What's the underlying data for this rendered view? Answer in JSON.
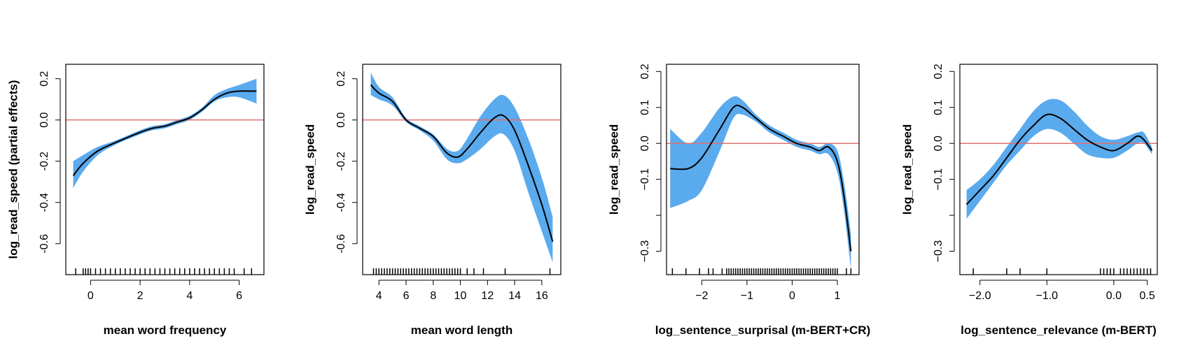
{
  "chart_data": [
    {
      "type": "line",
      "xlabel": "mean word frequency",
      "ylabel": "log_read_speed (partial effects)",
      "xlim": [
        -1.0,
        7.0
      ],
      "ylim": [
        -0.75,
        0.27
      ],
      "xticks": [
        0,
        2,
        4,
        6
      ],
      "xtick_labels": [
        "0",
        "2",
        "4",
        "6"
      ],
      "yticks": [
        -0.6,
        -0.4,
        -0.2,
        0.0,
        0.2
      ],
      "ytick_labels": [
        "-0.6",
        "-0.4",
        "-0.2",
        "0.0",
        "0.2"
      ],
      "reference_line": 0,
      "fit": {
        "x": [
          -0.7,
          -0.3,
          0.3,
          1.0,
          2.0,
          2.5,
          3.0,
          3.5,
          4.0,
          4.5,
          5.0,
          5.5,
          6.0,
          6.7
        ],
        "y": [
          -0.27,
          -0.21,
          -0.15,
          -0.11,
          -0.06,
          -0.04,
          -0.03,
          -0.01,
          0.01,
          0.05,
          0.1,
          0.13,
          0.14,
          0.14
        ],
        "lower": [
          -0.33,
          -0.25,
          -0.17,
          -0.12,
          -0.07,
          -0.05,
          -0.04,
          -0.02,
          0.0,
          0.04,
          0.09,
          0.11,
          0.11,
          0.08
        ],
        "upper": [
          -0.2,
          -0.17,
          -0.13,
          -0.1,
          -0.05,
          -0.03,
          -0.02,
          0.0,
          0.02,
          0.06,
          0.12,
          0.15,
          0.17,
          0.2
        ]
      },
      "rug": [
        -0.6,
        -0.3,
        -0.2,
        -0.1,
        0.0,
        0.2,
        0.4,
        0.6,
        0.8,
        1.0,
        1.2,
        1.4,
        1.6,
        1.8,
        2.0,
        2.2,
        2.4,
        2.6,
        2.8,
        3.0,
        3.2,
        3.4,
        3.6,
        3.8,
        4.0,
        4.2,
        4.4,
        4.6,
        4.8,
        5.0,
        5.2,
        5.4,
        5.6,
        5.8,
        6.2,
        6.5
      ]
    },
    {
      "type": "line",
      "xlabel": "mean word length",
      "ylabel": "log_read_speed",
      "xlim": [
        2.8,
        17.4
      ],
      "ylim": [
        -0.75,
        0.27
      ],
      "xticks": [
        4,
        6,
        8,
        10,
        12,
        14,
        16
      ],
      "xtick_labels": [
        "4",
        "6",
        "8",
        "10",
        "12",
        "14",
        "16"
      ],
      "yticks": [
        -0.6,
        -0.4,
        -0.2,
        0.0,
        0.2
      ],
      "ytick_labels": [
        "-0.6",
        "-0.4",
        "-0.2",
        "0.0",
        "0.2"
      ],
      "reference_line": 0,
      "fit": {
        "x": [
          3.4,
          4.0,
          5.0,
          6.0,
          7.0,
          8.0,
          9.0,
          9.8,
          10.5,
          11.5,
          12.5,
          13.2,
          14.0,
          15.0,
          16.0,
          16.8
        ],
        "y": [
          0.17,
          0.13,
          0.09,
          0.0,
          -0.04,
          -0.08,
          -0.16,
          -0.18,
          -0.14,
          -0.06,
          0.01,
          0.02,
          -0.05,
          -0.22,
          -0.41,
          -0.59
        ],
        "lower": [
          0.12,
          0.1,
          0.07,
          -0.01,
          -0.05,
          -0.1,
          -0.19,
          -0.21,
          -0.19,
          -0.14,
          -0.08,
          -0.07,
          -0.15,
          -0.35,
          -0.54,
          -0.69
        ],
        "upper": [
          0.23,
          0.16,
          0.11,
          0.01,
          -0.03,
          -0.07,
          -0.14,
          -0.15,
          -0.09,
          0.02,
          0.1,
          0.12,
          0.06,
          -0.09,
          -0.28,
          -0.47
        ]
      },
      "rug": [
        3.6,
        3.8,
        4.0,
        4.2,
        4.4,
        4.6,
        4.8,
        5.0,
        5.2,
        5.4,
        5.6,
        5.8,
        6.0,
        6.2,
        6.4,
        6.6,
        6.8,
        7.0,
        7.2,
        7.4,
        7.6,
        7.8,
        8.0,
        8.2,
        8.4,
        8.6,
        8.8,
        9.0,
        9.2,
        9.4,
        9.6,
        9.8,
        10.0,
        10.5,
        11.0,
        11.7,
        13.3,
        16.6
      ]
    },
    {
      "type": "line",
      "xlabel": "log_sentence_surprisal (m-BERT+CR)",
      "ylabel": "log_read_speed",
      "xlim": [
        -2.78,
        1.48
      ],
      "ylim": [
        -0.365,
        0.22
      ],
      "xticks": [
        -2,
        -1,
        0,
        1
      ],
      "xtick_labels": [
        "−2",
        "−1",
        "0",
        "1"
      ],
      "yticks": [
        -0.3,
        -0.2,
        -0.1,
        0.0,
        0.1,
        0.2
      ],
      "ytick_labels": [
        "−0.3",
        "",
        "−0.1",
        "0.0",
        "0.1",
        "0.2"
      ],
      "reference_line": 0,
      "fit": {
        "x": [
          -2.7,
          -2.3,
          -2.0,
          -1.6,
          -1.3,
          -1.1,
          -0.8,
          -0.5,
          -0.2,
          0.1,
          0.4,
          0.6,
          0.8,
          1.0,
          1.15,
          1.3
        ],
        "y": [
          -0.07,
          -0.07,
          -0.04,
          0.04,
          0.1,
          0.1,
          0.07,
          0.04,
          0.02,
          0.0,
          -0.01,
          -0.02,
          -0.01,
          -0.05,
          -0.15,
          -0.3
        ],
        "lower": [
          -0.18,
          -0.16,
          -0.13,
          -0.02,
          0.07,
          0.08,
          0.06,
          0.03,
          0.01,
          -0.01,
          -0.02,
          -0.03,
          -0.03,
          -0.08,
          -0.19,
          -0.35
        ],
        "upper": [
          0.04,
          0.0,
          0.03,
          0.1,
          0.13,
          0.12,
          0.08,
          0.05,
          0.03,
          0.01,
          0.0,
          -0.01,
          0.0,
          -0.02,
          -0.11,
          -0.25
        ]
      },
      "rug": [
        -2.65,
        -2.35,
        -2.05,
        -1.85,
        -1.75,
        -1.55,
        -1.45,
        -1.4,
        -1.35,
        -1.3,
        -1.25,
        -1.2,
        -1.15,
        -1.1,
        -1.05,
        -1.0,
        -0.95,
        -0.9,
        -0.85,
        -0.8,
        -0.75,
        -0.7,
        -0.65,
        -0.6,
        -0.55,
        -0.5,
        -0.45,
        -0.4,
        -0.35,
        -0.3,
        -0.25,
        -0.2,
        -0.15,
        -0.1,
        -0.05,
        0.0,
        0.05,
        0.1,
        0.15,
        0.2,
        0.25,
        0.3,
        0.35,
        0.4,
        0.45,
        0.5,
        0.55,
        0.6,
        0.65,
        0.7,
        0.75,
        0.8,
        0.85,
        0.9,
        0.95,
        1.0,
        1.2,
        1.3
      ]
    },
    {
      "type": "line",
      "xlabel": "log_sentence_relevance (m-BERT)",
      "ylabel": "log_read_speed",
      "xlim": [
        -2.3,
        0.65
      ],
      "ylim": [
        -0.365,
        0.22
      ],
      "xticks": [
        -2.0,
        -1.0,
        0.0,
        0.5
      ],
      "xtick_labels": [
        "−2.0",
        "−1.0",
        "0.0",
        "0.5"
      ],
      "yticks": [
        -0.3,
        -0.2,
        -0.1,
        0.0,
        0.1,
        0.2
      ],
      "ytick_labels": [
        "−0.3",
        "",
        "−0.1",
        "0.0",
        "0.1",
        "0.2"
      ],
      "reference_line": 0,
      "fit": {
        "x": [
          -2.2,
          -2.0,
          -1.8,
          -1.6,
          -1.4,
          -1.2,
          -1.0,
          -0.8,
          -0.6,
          -0.4,
          -0.2,
          0.0,
          0.2,
          0.35,
          0.45,
          0.57
        ],
        "y": [
          -0.17,
          -0.13,
          -0.09,
          -0.04,
          0.01,
          0.05,
          0.08,
          0.07,
          0.04,
          0.01,
          -0.01,
          -0.02,
          0.0,
          0.02,
          0.01,
          -0.02
        ],
        "lower": [
          -0.21,
          -0.16,
          -0.11,
          -0.06,
          -0.02,
          0.02,
          0.04,
          0.03,
          0.0,
          -0.03,
          -0.04,
          -0.04,
          -0.02,
          0.0,
          0.0,
          -0.03
        ],
        "upper": [
          -0.13,
          -0.1,
          -0.06,
          -0.01,
          0.04,
          0.09,
          0.12,
          0.12,
          0.09,
          0.05,
          0.02,
          0.01,
          0.02,
          0.03,
          0.03,
          -0.01
        ]
      },
      "rug": [
        -2.1,
        -1.6,
        -1.4,
        -1.0,
        -0.2,
        -0.15,
        -0.1,
        -0.05,
        0.0,
        0.1,
        0.15,
        0.2,
        0.25,
        0.3,
        0.35,
        0.4,
        0.45,
        0.5,
        0.55
      ]
    }
  ]
}
